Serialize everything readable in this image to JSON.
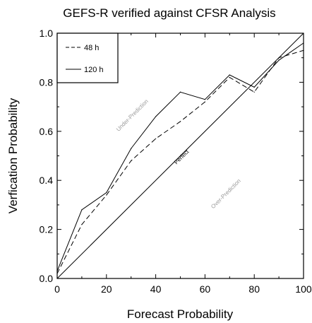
{
  "chart_data": {
    "type": "line",
    "title": "GEFS-R verified against CFSR Analysis",
    "xlabel": "Forecast Probability",
    "ylabel": "Verfication Probability",
    "xlim": [
      0,
      100
    ],
    "ylim": [
      0,
      1.0
    ],
    "xticks": [
      "0",
      "20",
      "40",
      "60",
      "80",
      "100"
    ],
    "yticks": [
      "0.0",
      "0.2",
      "0.4",
      "0.6",
      "0.8",
      "1.0"
    ],
    "grid": false,
    "legend_position": "top-left",
    "series": [
      {
        "name": "48 h",
        "dash": "dashed",
        "x": [
          0,
          10,
          20,
          30,
          40,
          50,
          60,
          70,
          80,
          90,
          100
        ],
        "y": [
          0.02,
          0.22,
          0.34,
          0.48,
          0.57,
          0.64,
          0.72,
          0.82,
          0.76,
          0.9,
          0.93
        ]
      },
      {
        "name": "120 h",
        "dash": "solid",
        "x": [
          0,
          10,
          20,
          30,
          40,
          50,
          60,
          70,
          80,
          90,
          100
        ],
        "y": [
          0.03,
          0.28,
          0.35,
          0.53,
          0.66,
          0.76,
          0.73,
          0.83,
          0.78,
          0.89,
          0.96
        ]
      }
    ],
    "reference_line": {
      "name": "Perfect",
      "x": [
        0,
        100
      ],
      "y": [
        0,
        1.0
      ]
    },
    "annotations": [
      {
        "text": "Under-Prediction",
        "x": 31,
        "y": 0.66,
        "color": "#9a9a9a"
      },
      {
        "text": "Perfect",
        "x": 51,
        "y": 0.49,
        "color": "#000000"
      },
      {
        "text": "Over-Prediction",
        "x": 69,
        "y": 0.34,
        "color": "#9a9a9a"
      }
    ]
  }
}
